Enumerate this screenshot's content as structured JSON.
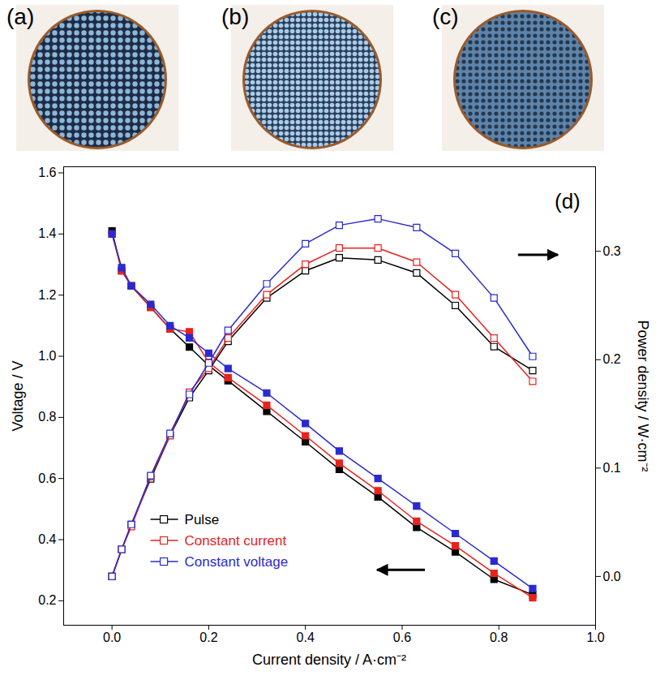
{
  "panels": [
    {
      "label": "(a)"
    },
    {
      "label": "(b)"
    },
    {
      "label": "(c)"
    }
  ],
  "chart_data": {
    "type": "line",
    "annotations": [
      {
        "text": "(d)"
      }
    ],
    "x_label": "Current density / A·cm⁻²",
    "y_label": "Voltage / V",
    "y2_label": "Power density / W·cm⁻²",
    "x": [
      0,
      0.02,
      0.04,
      0.08,
      0.12,
      0.16,
      0.2,
      0.24,
      0.32,
      0.4,
      0.47,
      0.55,
      0.63,
      0.71,
      0.79,
      0.87
    ],
    "xlim": [
      -0.1,
      1.0
    ],
    "xticks": [
      {
        "value": 0,
        "label": "0.0"
      },
      0.2,
      0.4,
      0.6,
      0.8,
      {
        "value": 1,
        "label": "1.0"
      }
    ],
    "ylim": [
      0.12,
      1.62
    ],
    "yticks": [
      0.2,
      0.4,
      0.6,
      0.8,
      {
        "value": 1,
        "label": "1.0"
      },
      1.2,
      1.4,
      1.6
    ],
    "y2lim": [
      -0.045,
      0.378
    ],
    "y2ticks": [
      {
        "value": 0,
        "label": "0.0"
      },
      0.1,
      0.2,
      0.3
    ],
    "grid": false,
    "legend": "lower left",
    "series": [
      {
        "name": "Pulse",
        "color": "#000000",
        "marker": "square",
        "line_style": "solid",
        "values": [
          1.41,
          1.28,
          1.23,
          1.16,
          1.09,
          1.03,
          0.97,
          0.92,
          0.82,
          0.72,
          0.63,
          0.54,
          0.44,
          0.36,
          0.27,
          0.22
        ]
      },
      {
        "name": "Constant current",
        "color": "#e8231e",
        "marker": "square",
        "line_style": "solid",
        "values": [
          1.4,
          1.28,
          1.23,
          1.16,
          1.09,
          1.08,
          0.98,
          0.93,
          0.84,
          0.74,
          0.65,
          0.56,
          0.46,
          0.38,
          0.29,
          0.21
        ]
      },
      {
        "name": "Constant voltage",
        "color": "#2a2ad0",
        "marker": "square",
        "line_style": "solid",
        "values": [
          1.4,
          1.29,
          1.23,
          1.17,
          1.1,
          1.06,
          1.01,
          0.96,
          0.88,
          0.78,
          0.69,
          0.6,
          0.51,
          0.42,
          0.33,
          0.24
        ]
      },
      {
        "name": "Pulse",
        "color": "#000000",
        "marker": "square-open",
        "line_style": "solid",
        "axis": "y2",
        "values": [
          0.0,
          0.025,
          0.048,
          0.09,
          0.13,
          0.165,
          0.19,
          0.217,
          0.257,
          0.282,
          0.294,
          0.292,
          0.28,
          0.25,
          0.212,
          0.19
        ]
      },
      {
        "name": "Constant current",
        "color": "#e8231e",
        "marker": "square-open",
        "line_style": "solid",
        "axis": "y2",
        "values": [
          0.0,
          0.025,
          0.046,
          0.092,
          0.13,
          0.17,
          0.192,
          0.22,
          0.26,
          0.288,
          0.303,
          0.303,
          0.29,
          0.26,
          0.22,
          0.18
        ]
      },
      {
        "name": "Constant voltage",
        "color": "#2a2ad0",
        "marker": "square-open",
        "line_style": "solid",
        "axis": "y2",
        "values": [
          0.0,
          0.025,
          0.048,
          0.093,
          0.132,
          0.168,
          0.197,
          0.227,
          0.27,
          0.307,
          0.324,
          0.33,
          0.322,
          0.298,
          0.257,
          0.203
        ]
      }
    ]
  }
}
